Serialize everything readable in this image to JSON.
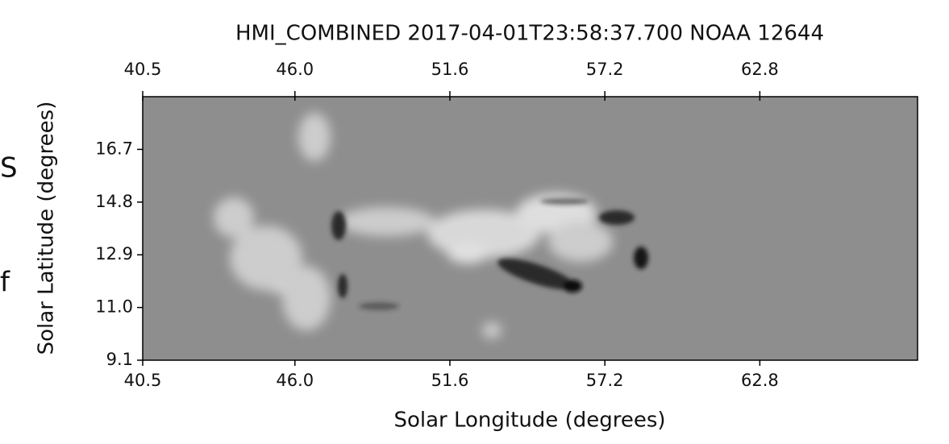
{
  "cropped_text": [
    "S",
    "f"
  ],
  "chart_data": {
    "type": "image",
    "title": "HMI_COMBINED 2017-04-01T23:58:37.700 NOAA 12644",
    "xlabel": "Solar Longitude (degrees)",
    "ylabel": "Solar Latitude (degrees)",
    "xlim": [
      40.5,
      68.5
    ],
    "ylim": [
      9.1,
      18.6
    ],
    "xticks": [
      40.5,
      {
        "value": 46,
        "label": "46.0"
      },
      51.6,
      57.2,
      62.8
    ],
    "yticks": [
      9.1,
      {
        "value": 11,
        "label": "11.0"
      },
      12.9,
      14.8,
      16.7
    ],
    "top_axis": true
  }
}
